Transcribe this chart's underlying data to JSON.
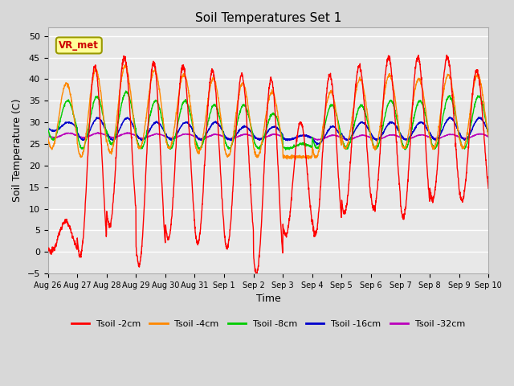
{
  "title": "Soil Temperatures Set 1",
  "xlabel": "Time",
  "ylabel": "Soil Temperature (C)",
  "ylim": [
    -5,
    52
  ],
  "yticks": [
    -5,
    0,
    5,
    10,
    15,
    20,
    25,
    30,
    35,
    40,
    45,
    50
  ],
  "fig_bg": "#d8d8d8",
  "plot_bg": "#e8e8e8",
  "grid_color": "#ffffff",
  "annotation_text": "VR_met",
  "annotation_color": "#cc0000",
  "annotation_bg": "#ffff99",
  "annotation_border": "#999900",
  "series_colors": {
    "2cm": "#ff0000",
    "4cm": "#ff8800",
    "8cm": "#00cc00",
    "16cm": "#0000cc",
    "32cm": "#bb00bb"
  },
  "legend_labels": [
    "Tsoil -2cm",
    "Tsoil -4cm",
    "Tsoil -8cm",
    "Tsoil -16cm",
    "Tsoil -32cm"
  ],
  "xtick_labels": [
    "Aug 26",
    "Aug 27",
    "Aug 28",
    "Aug 29",
    "Aug 30",
    "Aug 31",
    "Sep 1",
    "Sep 2",
    "Sep 3",
    "Sep 4",
    "Sep 5",
    "Sep 6",
    "Sep 7",
    "Sep 8",
    "Sep 9",
    "Sep 10"
  ],
  "n_days": 15,
  "pts_per_day": 144
}
